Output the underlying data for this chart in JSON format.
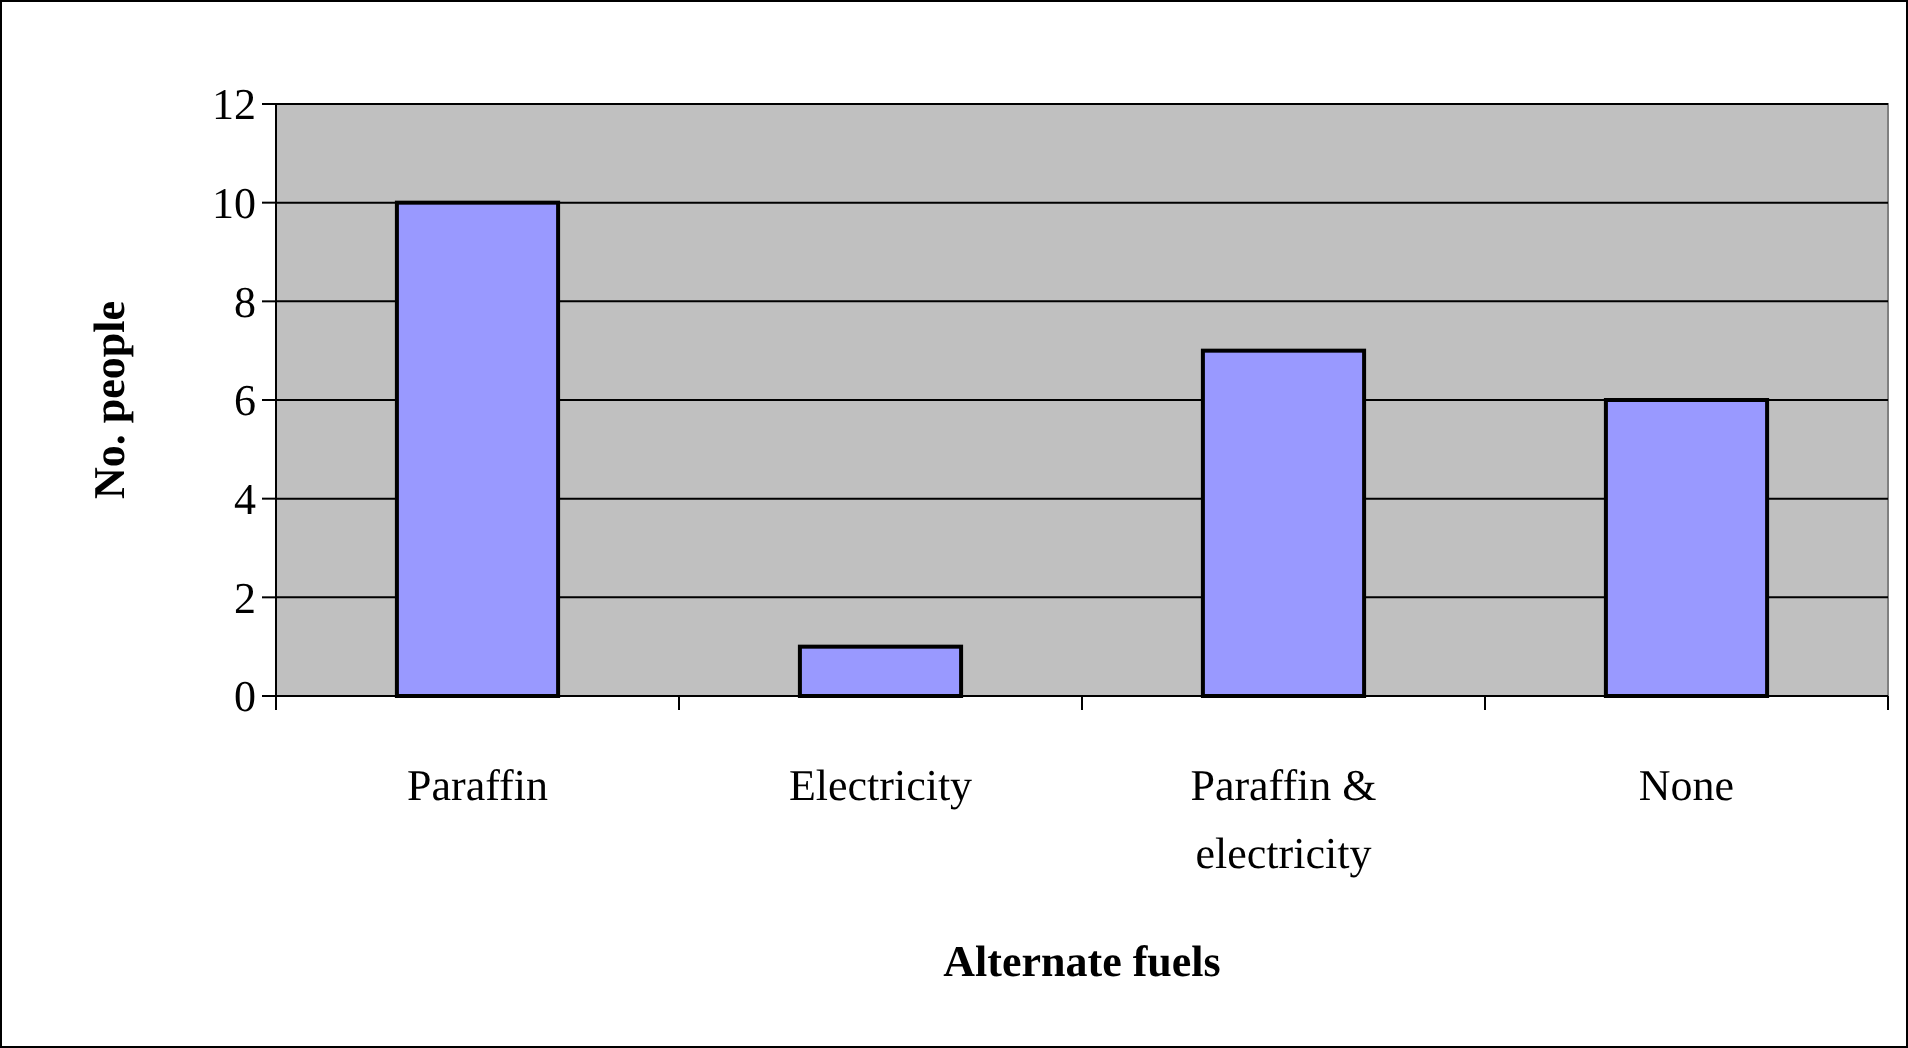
{
  "chart_data": {
    "type": "bar",
    "xlabel": "Alternate fuels",
    "ylabel": "No. people",
    "categories": [
      "Paraffin",
      "Electricity",
      "Paraffin & electricity",
      "None"
    ],
    "values": [
      10,
      1,
      7,
      6
    ],
    "color": "#9999ff",
    "ylim": [
      0,
      12
    ],
    "yticks": [
      0,
      2,
      4,
      6,
      8,
      10,
      12
    ],
    "grid": "y"
  }
}
